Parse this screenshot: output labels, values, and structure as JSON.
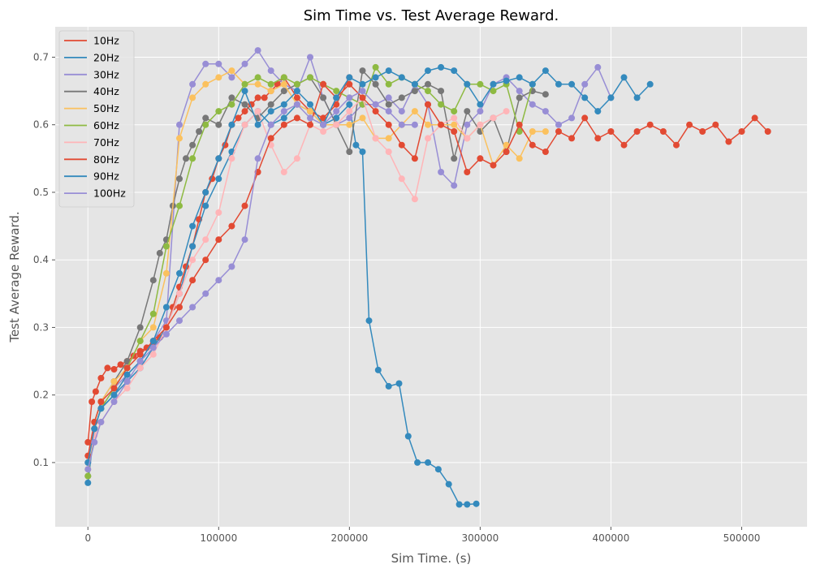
{
  "chart_data": {
    "type": "line",
    "title": "Sim Time vs. Test Average Reward.",
    "xlabel": "Sim Time. (s)",
    "ylabel": "Test Average Reward.",
    "xlim": [
      -25000,
      550000
    ],
    "ylim": [
      0.005,
      0.745
    ],
    "xticks": [
      0,
      100000,
      200000,
      300000,
      400000,
      500000
    ],
    "xtick_labels": [
      "0",
      "100000",
      "200000",
      "300000",
      "400000",
      "500000"
    ],
    "yticks": [
      0.1,
      0.2,
      0.3,
      0.4,
      0.5,
      0.6,
      0.7
    ],
    "ytick_labels": [
      "0.1",
      "0.2",
      "0.3",
      "0.4",
      "0.5",
      "0.6",
      "0.7"
    ],
    "grid": true,
    "legend_position": "top-left",
    "markers": "circle",
    "series": [
      {
        "name": "10Hz",
        "color": "#E24A33",
        "x": [
          0,
          3000,
          6000,
          10000,
          15000,
          20000,
          25000,
          30000,
          35000,
          40000,
          45000,
          50000,
          55000,
          60000,
          65000,
          70000,
          75000,
          80000,
          85000,
          90000,
          95000,
          100000,
          105000,
          110000,
          115000,
          120000,
          125000,
          130000,
          135000,
          140000,
          145000,
          150000,
          160000,
          170000,
          180000,
          190000,
          200000
        ],
        "y": [
          0.13,
          0.19,
          0.205,
          0.225,
          0.24,
          0.238,
          0.245,
          0.25,
          0.258,
          0.265,
          0.27,
          0.278,
          0.285,
          0.3,
          0.33,
          0.36,
          0.39,
          0.42,
          0.46,
          0.5,
          0.52,
          0.55,
          0.57,
          0.6,
          0.61,
          0.62,
          0.63,
          0.64,
          0.64,
          0.65,
          0.66,
          0.67,
          0.64,
          0.62,
          0.61,
          0.63,
          0.67
        ]
      },
      {
        "name": "20Hz",
        "color": "#348ABD",
        "x": [
          0,
          5000,
          10000,
          20000,
          30000,
          40000,
          50000,
          60000,
          70000,
          80000,
          90000,
          100000,
          110000,
          120000,
          130000,
          140000,
          150000,
          160000,
          170000,
          180000,
          190000,
          200000,
          205000,
          210000,
          215000,
          222000,
          230000,
          238000,
          245000,
          252000,
          260000,
          268000,
          276000,
          284000,
          290000,
          297000
        ],
        "y": [
          0.07,
          0.15,
          0.18,
          0.2,
          0.22,
          0.24,
          0.27,
          0.3,
          0.35,
          0.42,
          0.48,
          0.52,
          0.56,
          0.6,
          0.62,
          0.6,
          0.61,
          0.63,
          0.62,
          0.6,
          0.61,
          0.63,
          0.57,
          0.56,
          0.31,
          0.237,
          0.213,
          0.217,
          0.139,
          0.1,
          0.1,
          0.09,
          0.068,
          0.038,
          0.038,
          0.039
        ]
      },
      {
        "name": "30Hz",
        "color": "#988ED5",
        "x": [
          0,
          5000,
          10000,
          20000,
          30000,
          40000,
          50000,
          60000,
          70000,
          80000,
          90000,
          100000,
          110000,
          120000,
          130000,
          140000,
          150000,
          160000,
          170000,
          180000,
          190000,
          200000,
          210000,
          220000,
          230000,
          240000,
          250000,
          260000,
          270000,
          280000,
          290000,
          300000,
          310000,
          320000,
          330000,
          340000,
          350000,
          360000,
          370000,
          380000,
          390000,
          400000
        ],
        "y": [
          0.1,
          0.15,
          0.18,
          0.21,
          0.23,
          0.25,
          0.28,
          0.31,
          0.6,
          0.66,
          0.69,
          0.69,
          0.67,
          0.69,
          0.71,
          0.68,
          0.66,
          0.65,
          0.7,
          0.64,
          0.6,
          0.61,
          0.63,
          0.63,
          0.64,
          0.62,
          0.66,
          0.63,
          0.53,
          0.51,
          0.6,
          0.62,
          0.66,
          0.67,
          0.65,
          0.63,
          0.62,
          0.6,
          0.61,
          0.66,
          0.685,
          0.64
        ]
      },
      {
        "name": "40Hz",
        "color": "#777777",
        "x": [
          0,
          5000,
          10000,
          20000,
          30000,
          40000,
          50000,
          55000,
          60000,
          65000,
          70000,
          75000,
          80000,
          85000,
          90000,
          100000,
          110000,
          120000,
          130000,
          140000,
          150000,
          160000,
          170000,
          180000,
          190000,
          200000,
          210000,
          220000,
          230000,
          240000,
          250000,
          260000,
          270000,
          280000,
          290000,
          300000,
          310000,
          320000,
          330000,
          340000,
          350000
        ],
        "y": [
          0.08,
          0.16,
          0.19,
          0.22,
          0.25,
          0.3,
          0.37,
          0.41,
          0.43,
          0.48,
          0.52,
          0.55,
          0.57,
          0.59,
          0.61,
          0.6,
          0.64,
          0.63,
          0.61,
          0.63,
          0.65,
          0.66,
          0.67,
          0.64,
          0.6,
          0.56,
          0.68,
          0.66,
          0.63,
          0.64,
          0.65,
          0.66,
          0.65,
          0.55,
          0.62,
          0.59,
          0.61,
          0.56,
          0.64,
          0.65,
          0.645
        ]
      },
      {
        "name": "50Hz",
        "color": "#FBC15E",
        "x": [
          0,
          5000,
          10000,
          20000,
          30000,
          40000,
          50000,
          60000,
          70000,
          80000,
          90000,
          100000,
          110000,
          120000,
          130000,
          140000,
          150000,
          160000,
          170000,
          180000,
          190000,
          200000,
          210000,
          220000,
          230000,
          240000,
          250000,
          260000,
          270000,
          280000,
          290000,
          300000,
          310000,
          320000,
          330000,
          340000,
          350000
        ],
        "y": [
          0.09,
          0.16,
          0.19,
          0.22,
          0.24,
          0.28,
          0.3,
          0.38,
          0.58,
          0.64,
          0.66,
          0.67,
          0.68,
          0.66,
          0.66,
          0.65,
          0.66,
          0.63,
          0.62,
          0.6,
          0.6,
          0.6,
          0.61,
          0.58,
          0.58,
          0.6,
          0.62,
          0.6,
          0.6,
          0.6,
          0.58,
          0.6,
          0.54,
          0.57,
          0.55,
          0.59,
          0.59
        ]
      },
      {
        "name": "60Hz",
        "color": "#8EBA42",
        "x": [
          0,
          5000,
          10000,
          20000,
          30000,
          40000,
          50000,
          60000,
          70000,
          80000,
          90000,
          100000,
          110000,
          120000,
          130000,
          140000,
          150000,
          160000,
          170000,
          180000,
          190000,
          200000,
          210000,
          220000,
          230000,
          240000,
          250000,
          260000,
          270000,
          280000,
          290000,
          300000,
          310000,
          320000,
          330000,
          340000
        ],
        "y": [
          0.08,
          0.15,
          0.18,
          0.21,
          0.24,
          0.28,
          0.32,
          0.42,
          0.48,
          0.55,
          0.6,
          0.62,
          0.63,
          0.66,
          0.67,
          0.66,
          0.67,
          0.66,
          0.67,
          0.66,
          0.65,
          0.64,
          0.63,
          0.685,
          0.66,
          0.67,
          0.66,
          0.65,
          0.63,
          0.62,
          0.66,
          0.66,
          0.65,
          0.66,
          0.59,
          0.66
        ]
      },
      {
        "name": "70Hz",
        "color": "#FFB5B8",
        "x": [
          0,
          5000,
          10000,
          20000,
          30000,
          40000,
          50000,
          60000,
          70000,
          80000,
          90000,
          100000,
          110000,
          120000,
          130000,
          140000,
          150000,
          160000,
          170000,
          180000,
          190000,
          200000,
          210000,
          220000,
          230000,
          240000,
          250000,
          260000,
          270000,
          280000,
          290000,
          300000,
          310000,
          320000
        ],
        "y": [
          0.1,
          0.14,
          0.16,
          0.19,
          0.21,
          0.24,
          0.26,
          0.3,
          0.35,
          0.4,
          0.43,
          0.47,
          0.55,
          0.6,
          0.62,
          0.57,
          0.53,
          0.55,
          0.6,
          0.59,
          0.6,
          0.62,
          0.64,
          0.58,
          0.56,
          0.52,
          0.49,
          0.58,
          0.6,
          0.61,
          0.58,
          0.6,
          0.61,
          0.62
        ]
      },
      {
        "name": "80Hz",
        "color": "#E24A33",
        "x": [
          0,
          5000,
          10000,
          20000,
          30000,
          40000,
          50000,
          60000,
          70000,
          80000,
          90000,
          100000,
          110000,
          120000,
          130000,
          140000,
          150000,
          160000,
          170000,
          180000,
          190000,
          200000,
          210000,
          220000,
          230000,
          240000,
          250000,
          260000,
          270000,
          280000,
          290000,
          300000,
          310000,
          320000,
          330000,
          340000,
          350000,
          360000,
          370000,
          380000,
          390000,
          400000,
          410000,
          420000,
          430000,
          440000,
          450000,
          460000,
          470000,
          480000,
          490000,
          500000,
          510000,
          520000
        ],
        "y": [
          0.11,
          0.16,
          0.19,
          0.21,
          0.24,
          0.26,
          0.28,
          0.3,
          0.33,
          0.37,
          0.4,
          0.43,
          0.45,
          0.48,
          0.53,
          0.58,
          0.6,
          0.61,
          0.6,
          0.66,
          0.64,
          0.66,
          0.64,
          0.62,
          0.6,
          0.57,
          0.55,
          0.63,
          0.6,
          0.59,
          0.53,
          0.55,
          0.54,
          0.56,
          0.6,
          0.57,
          0.56,
          0.59,
          0.58,
          0.61,
          0.58,
          0.59,
          0.57,
          0.59,
          0.6,
          0.59,
          0.57,
          0.6,
          0.59,
          0.6,
          0.575,
          0.59,
          0.61,
          0.59
        ]
      },
      {
        "name": "90Hz",
        "color": "#348ABD",
        "x": [
          0,
          5000,
          10000,
          20000,
          30000,
          40000,
          50000,
          60000,
          70000,
          80000,
          90000,
          100000,
          110000,
          120000,
          130000,
          140000,
          150000,
          160000,
          170000,
          180000,
          190000,
          200000,
          210000,
          220000,
          230000,
          240000,
          250000,
          260000,
          270000,
          280000,
          290000,
          300000,
          310000,
          320000,
          330000,
          340000,
          350000,
          360000,
          370000,
          380000,
          390000,
          400000,
          410000,
          420000,
          430000
        ],
        "y": [
          0.1,
          0.15,
          0.18,
          0.2,
          0.23,
          0.25,
          0.28,
          0.33,
          0.38,
          0.45,
          0.5,
          0.55,
          0.6,
          0.65,
          0.6,
          0.62,
          0.63,
          0.65,
          0.63,
          0.6,
          0.64,
          0.67,
          0.66,
          0.67,
          0.68,
          0.67,
          0.66,
          0.68,
          0.685,
          0.68,
          0.66,
          0.63,
          0.66,
          0.665,
          0.67,
          0.66,
          0.68,
          0.66,
          0.66,
          0.64,
          0.62,
          0.64,
          0.67,
          0.64,
          0.66
        ]
      },
      {
        "name": "100Hz",
        "color": "#988ED5",
        "x": [
          0,
          5000,
          10000,
          20000,
          30000,
          40000,
          50000,
          60000,
          70000,
          80000,
          90000,
          100000,
          110000,
          120000,
          130000,
          140000,
          150000,
          160000,
          170000,
          180000,
          190000,
          200000,
          210000,
          220000,
          230000,
          240000,
          250000
        ],
        "y": [
          0.09,
          0.13,
          0.16,
          0.19,
          0.22,
          0.25,
          0.27,
          0.29,
          0.31,
          0.33,
          0.35,
          0.37,
          0.39,
          0.43,
          0.55,
          0.6,
          0.62,
          0.63,
          0.61,
          0.6,
          0.62,
          0.64,
          0.65,
          0.63,
          0.62,
          0.6,
          0.6
        ]
      }
    ]
  }
}
